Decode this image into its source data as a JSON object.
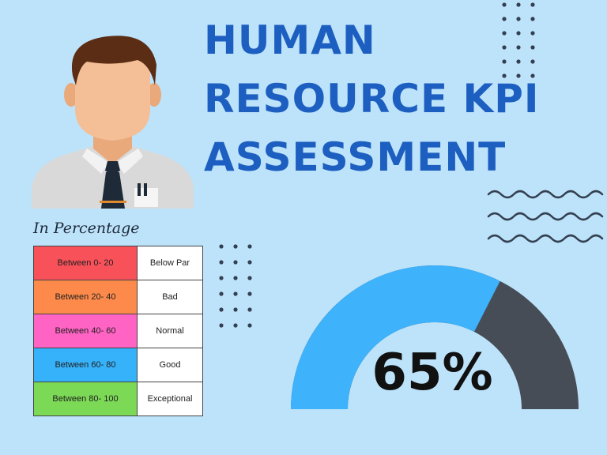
{
  "title_lines": [
    "HUMAN",
    "RESOURCE KPI",
    "ASSESSMENT"
  ],
  "caption": "In Percentage",
  "legend_rows": [
    {
      "range": "Between 0- 20",
      "label": "Below Par",
      "color": "#f9515a"
    },
    {
      "range": "Between 20- 40",
      "label": "Bad",
      "color": "#fd8a4a"
    },
    {
      "range": "Between 40- 60",
      "label": "Normal",
      "color": "#ff63c4"
    },
    {
      "range": "Between 60- 80",
      "label": "Good",
      "color": "#36b2fb"
    },
    {
      "range": "Between 80- 100",
      "label": "Exceptional",
      "color": "#7cd955"
    }
  ],
  "gauge": {
    "value": 65,
    "display": "65%",
    "fill_color": "#3eb2fa",
    "track_color": "#474d56"
  },
  "icons": [
    "person-avatar-icon",
    "pen-icon",
    "dot-grid-icon",
    "wave-lines-icon"
  ],
  "colors": {
    "background": "#bde3fb",
    "title": "#1d5fc0"
  }
}
